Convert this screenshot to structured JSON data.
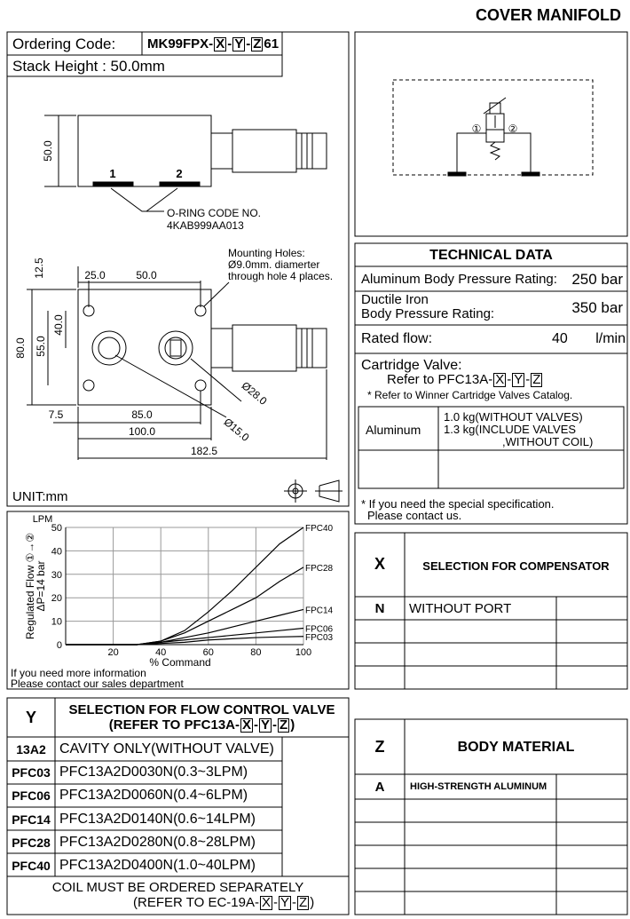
{
  "header": {
    "title": "COVER MANIFOLD"
  },
  "ordering": {
    "label": "Ordering Code:",
    "code": [
      "MK99FPX-",
      "X",
      "-",
      "Y",
      "-",
      "Z",
      "61"
    ],
    "stack_height": "Stack Height : 50.0mm"
  },
  "drawing": {
    "side": {
      "height": "50.0",
      "port1": "1",
      "port2": "2",
      "oring_label": "O-RING CODE NO.",
      "oring_code": "4KAB999AA013"
    },
    "mounting_note": [
      "Mounting Holes:",
      "Ø9.0mm. diamerter",
      "through hole 4 places."
    ],
    "dims": [
      "12.5",
      "25.0",
      "50.0",
      "40.0",
      "55.0",
      "80.0",
      "Ø28.0",
      "7.5",
      "85.0",
      "100.0",
      "Ø15.0",
      "182.5"
    ],
    "unit": "UNIT:mm"
  },
  "symbol": {
    "port1": "①",
    "port2": "②"
  },
  "technical_data": {
    "title": "TECHNICAL DATA",
    "aluminum_pressure": {
      "label": "Aluminum Body Pressure Rating:",
      "value": "250 bar"
    },
    "ductile_pressure": {
      "label": [
        "Ductile Iron",
        "Body Pressure Rating:"
      ],
      "value": "350 bar"
    },
    "rated_flow": {
      "label": "Rated flow:",
      "value": "40",
      "unit": "l/min"
    },
    "cartridge": {
      "label": "Cartridge Valve:",
      "refer": [
        "Refer to PFC13A-",
        "X",
        "-",
        "Y",
        "-",
        "Z"
      ],
      "note": "* Refer to Winner Cartridge Valves Catalog."
    },
    "weight": {
      "material": "Aluminum",
      "lines": [
        "1.0 kg(WITHOUT VALVES)",
        "1.3 kg(INCLUDE VALVES",
        ",WITHOUT COIL)"
      ]
    },
    "note": [
      "* If you need the special specification.",
      "Please contact us."
    ]
  },
  "chart_data": {
    "type": "line",
    "y_unit": "LPM",
    "ylabel": [
      "Regulated Flow ①→②",
      "ΔP=14 bar"
    ],
    "xlabel": "% Command",
    "x": [
      0,
      30,
      40,
      50,
      60,
      70,
      80,
      90,
      100
    ],
    "series": [
      {
        "name": "FPC40",
        "color": "#000000",
        "values": [
          0,
          0,
          1.5,
          6,
          14,
          23,
          33,
          43,
          50
        ]
      },
      {
        "name": "FPC28",
        "color": "#000000",
        "values": [
          0,
          0,
          1.5,
          5,
          10,
          15,
          20,
          27,
          33
        ]
      },
      {
        "name": "FPC14",
        "color": "#000000",
        "values": [
          0,
          0,
          1,
          3,
          5,
          7.5,
          10,
          12.5,
          15
        ]
      },
      {
        "name": "FPC06",
        "color": "#000000",
        "values": [
          0,
          0,
          1,
          2,
          3,
          4,
          5,
          6,
          7
        ]
      },
      {
        "name": "FPC03",
        "color": "#000000",
        "values": [
          0,
          0,
          0.5,
          1,
          2,
          2.5,
          3,
          3.3,
          3.5
        ]
      }
    ],
    "xlim": [
      0,
      100
    ],
    "ylim": [
      0,
      50
    ],
    "xticks": [
      20,
      40,
      60,
      80,
      100
    ],
    "yticks": [
      0,
      10,
      20,
      30,
      40,
      50
    ],
    "grid": true,
    "note": [
      "If you need more information",
      "Please contact our sales department"
    ]
  },
  "selection_y": {
    "code_label": "Y",
    "title": "SELECTION FOR FLOW CONTROL VALVE",
    "title_ref": [
      "(REFER TO PFC13A-",
      "X",
      "-",
      "Y",
      "-",
      "Z",
      ")"
    ],
    "rows": [
      [
        "13A2",
        "CAVITY ONLY(WITHOUT VALVE)"
      ],
      [
        "PFC03",
        "PFC13A2D0030N(0.3~3LPM)"
      ],
      [
        "PFC06",
        "PFC13A2D0060N(0.4~6LPM)"
      ],
      [
        "PFC14",
        "PFC13A2D0140N(0.6~14LPM)"
      ],
      [
        "PFC28",
        "PFC13A2D0280N(0.8~28LPM)"
      ],
      [
        "PFC40",
        "PFC13A2D0400N(1.0~40LPM)"
      ]
    ],
    "footer": "COIL MUST BE ORDERED SEPARATELY",
    "footer_ref": [
      "(REFER TO EC-19A-",
      "X",
      "-",
      "Y",
      "-",
      "Z",
      ")"
    ]
  },
  "selection_x": {
    "code_label": "X",
    "title": "SELECTION FOR COMPENSATOR",
    "rows": [
      [
        "N",
        "WITHOUT PORT"
      ]
    ]
  },
  "selection_z": {
    "code_label": "Z",
    "title": "BODY MATERIAL",
    "rows": [
      [
        "A",
        "HIGH-STRENGTH ALUMINUM"
      ]
    ]
  }
}
